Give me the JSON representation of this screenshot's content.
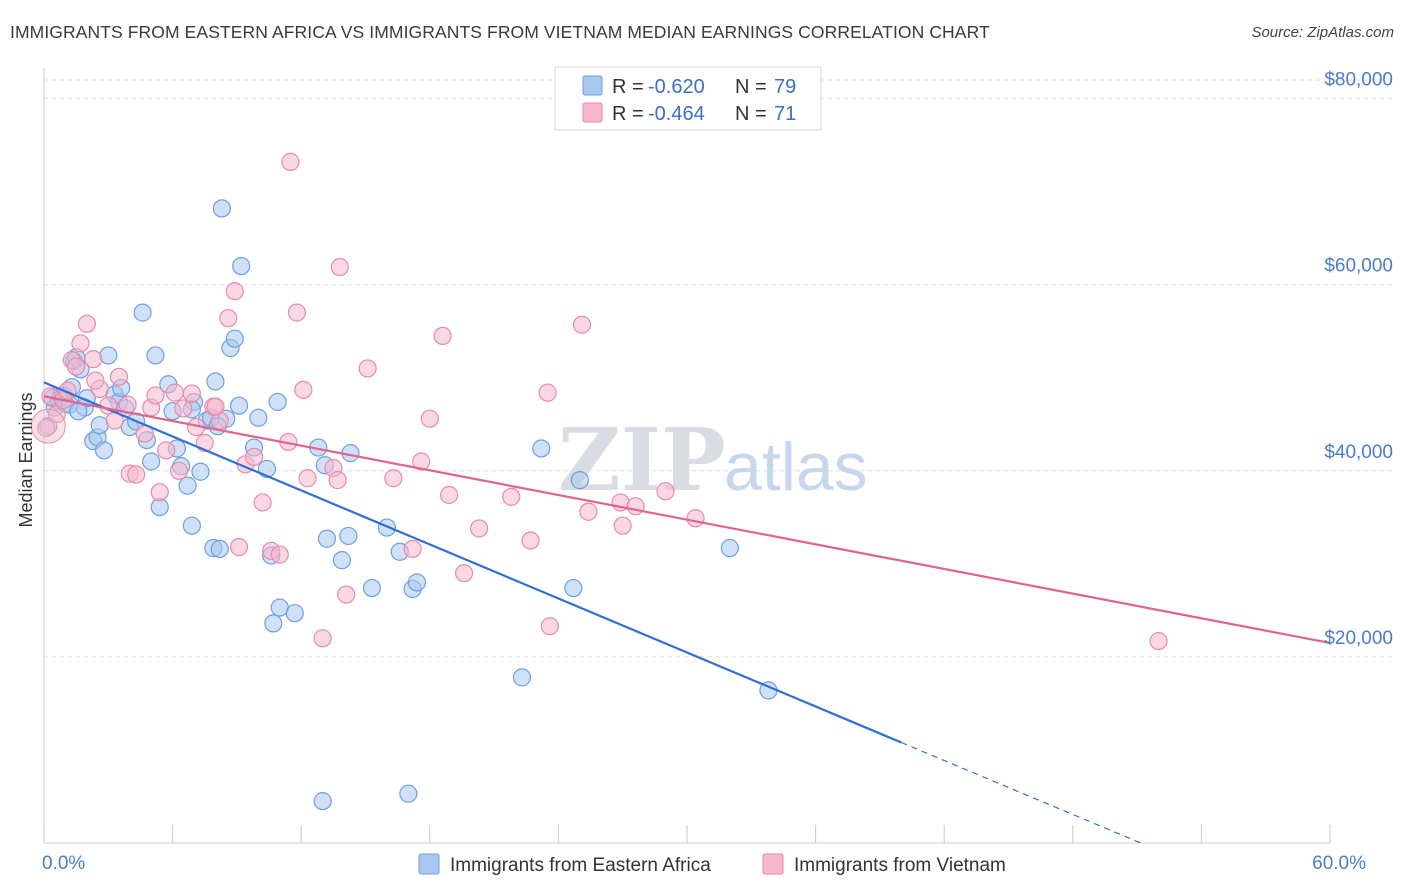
{
  "title": "IMMIGRANTS FROM EASTERN AFRICA VS IMMIGRANTS FROM VIETNAM MEDIAN EARNINGS CORRELATION CHART",
  "source": "Source: ZipAtlas.com",
  "watermark": {
    "zip": "ZIP",
    "atlas": "atlas"
  },
  "colors": {
    "blue_fill": "#a9c8f0",
    "blue_stroke": "#6e9fe0",
    "blue_line": "#2f6fd6",
    "pink_fill": "#f5b8cc",
    "pink_stroke": "#e88aa8",
    "pink_line": "#e0648d",
    "tick_text": "#4a7cc7",
    "grid": "#dddddd"
  },
  "legend": {
    "rows": [
      {
        "r_label": "R = ",
        "r_value": "-0.620",
        "n_label": "N = ",
        "n_value": "79"
      },
      {
        "r_label": "R = ",
        "r_value": "-0.464",
        "n_label": "N = ",
        "n_value": "71"
      }
    ]
  },
  "chart_data": {
    "type": "scatter",
    "ylabel": "Median Earnings",
    "xlim": [
      0,
      60
    ],
    "ylim": [
      0,
      82000
    ],
    "x_ticks_labeled": [
      {
        "value": 0,
        "label": "0.0%"
      },
      {
        "value": 60,
        "label": "60.0%"
      }
    ],
    "x_tick_marks": [
      0,
      6,
      12,
      18,
      24,
      30,
      36,
      42,
      48,
      54,
      60
    ],
    "y_ticks": [
      {
        "value": 20000,
        "label": "$20,000"
      },
      {
        "value": 40000,
        "label": "$40,000"
      },
      {
        "value": 60000,
        "label": "$60,000"
      },
      {
        "value": 80000,
        "label": "$80,000"
      }
    ],
    "grid": "horizontal-dashed",
    "legend_placement": "top-center",
    "series": [
      {
        "name": "Immigrants from Eastern Africa",
        "color": "blue",
        "points": [
          [
            0.2,
            44800
          ],
          [
            0.4,
            47800
          ],
          [
            0.5,
            46800
          ],
          [
            0.7,
            47500
          ],
          [
            0.8,
            48000
          ],
          [
            0.9,
            48100
          ],
          [
            1.0,
            47200
          ],
          [
            1.2,
            47100
          ],
          [
            1.3,
            49000
          ],
          [
            1.4,
            51800
          ],
          [
            1.5,
            52200
          ],
          [
            1.7,
            50900
          ],
          [
            1.9,
            46800
          ],
          [
            2.0,
            47800
          ],
          [
            2.3,
            43200
          ],
          [
            2.5,
            43600
          ],
          [
            2.8,
            42200
          ],
          [
            3.0,
            52400
          ],
          [
            3.3,
            48200
          ],
          [
            3.5,
            47400
          ],
          [
            3.8,
            46700
          ],
          [
            4.0,
            44700
          ],
          [
            4.3,
            45300
          ],
          [
            4.6,
            57000
          ],
          [
            4.8,
            43300
          ],
          [
            5.0,
            41000
          ],
          [
            5.2,
            52400
          ],
          [
            5.4,
            36100
          ],
          [
            5.8,
            49300
          ],
          [
            6.0,
            46400
          ],
          [
            6.2,
            42400
          ],
          [
            6.4,
            40500
          ],
          [
            6.7,
            38400
          ],
          [
            6.9,
            34100
          ],
          [
            7.0,
            47400
          ],
          [
            7.3,
            39900
          ],
          [
            7.6,
            45400
          ],
          [
            7.8,
            45700
          ],
          [
            7.9,
            31700
          ],
          [
            8.0,
            49600
          ],
          [
            8.2,
            31600
          ],
          [
            8.3,
            68200
          ],
          [
            8.5,
            45600
          ],
          [
            8.7,
            53200
          ],
          [
            8.9,
            54200
          ],
          [
            9.1,
            47000
          ],
          [
            9.2,
            62000
          ],
          [
            9.8,
            42500
          ],
          [
            10.0,
            45700
          ],
          [
            10.4,
            40200
          ],
          [
            10.6,
            30900
          ],
          [
            10.9,
            47400
          ],
          [
            10.7,
            23600
          ],
          [
            11.0,
            25300
          ],
          [
            11.7,
            24700
          ],
          [
            12.8,
            42500
          ],
          [
            13.1,
            40600
          ],
          [
            13.2,
            32700
          ],
          [
            13.9,
            30400
          ],
          [
            14.2,
            33000
          ],
          [
            14.3,
            41900
          ],
          [
            15.3,
            27400
          ],
          [
            16.0,
            33900
          ],
          [
            16.6,
            31300
          ],
          [
            17.2,
            27300
          ],
          [
            17.4,
            28000
          ],
          [
            13.0,
            4500
          ],
          [
            17.0,
            5300
          ],
          [
            22.3,
            17800
          ],
          [
            23.2,
            42400
          ],
          [
            24.7,
            27400
          ],
          [
            25.0,
            39000
          ],
          [
            32.0,
            31700
          ],
          [
            33.8,
            16400
          ],
          [
            2.6,
            44900
          ],
          [
            3.6,
            48900
          ],
          [
            6.9,
            46600
          ],
          [
            1.6,
            46400
          ],
          [
            8.1,
            44800
          ]
        ],
        "trend": {
          "x": [
            0,
            40,
            55
          ],
          "y": [
            49500,
            10800,
            -3700
          ],
          "solid_until": 40
        }
      },
      {
        "name": "Immigrants from Vietnam",
        "color": "pink",
        "points": [
          [
            0.1,
            44600
          ],
          [
            0.3,
            48000
          ],
          [
            0.6,
            46100
          ],
          [
            0.9,
            47600
          ],
          [
            1.1,
            48600
          ],
          [
            1.3,
            51900
          ],
          [
            1.5,
            51200
          ],
          [
            1.7,
            53700
          ],
          [
            2.0,
            55800
          ],
          [
            2.3,
            52000
          ],
          [
            2.6,
            48800
          ],
          [
            3.0,
            47000
          ],
          [
            3.3,
            45400
          ],
          [
            3.5,
            50100
          ],
          [
            3.9,
            47100
          ],
          [
            4.0,
            39700
          ],
          [
            4.3,
            39600
          ],
          [
            4.7,
            44000
          ],
          [
            5.0,
            46800
          ],
          [
            5.2,
            48100
          ],
          [
            5.4,
            37700
          ],
          [
            5.7,
            42200
          ],
          [
            6.1,
            48400
          ],
          [
            6.3,
            40000
          ],
          [
            6.5,
            46700
          ],
          [
            6.9,
            48300
          ],
          [
            7.1,
            44700
          ],
          [
            7.5,
            43000
          ],
          [
            7.9,
            46900
          ],
          [
            8.2,
            45400
          ],
          [
            8.6,
            56400
          ],
          [
            8.9,
            59300
          ],
          [
            9.1,
            31800
          ],
          [
            9.4,
            40700
          ],
          [
            9.8,
            41500
          ],
          [
            10.2,
            36600
          ],
          [
            10.6,
            31400
          ],
          [
            11.0,
            31000
          ],
          [
            11.4,
            43100
          ],
          [
            11.8,
            57000
          ],
          [
            12.1,
            48700
          ],
          [
            12.3,
            39200
          ],
          [
            11.5,
            73200
          ],
          [
            13.0,
            22000
          ],
          [
            13.5,
            40300
          ],
          [
            13.7,
            39000
          ],
          [
            13.8,
            61900
          ],
          [
            14.1,
            26700
          ],
          [
            15.1,
            51000
          ],
          [
            16.3,
            39200
          ],
          [
            17.2,
            31600
          ],
          [
            17.6,
            41000
          ],
          [
            18.0,
            45600
          ],
          [
            18.6,
            54500
          ],
          [
            18.9,
            37400
          ],
          [
            19.6,
            29000
          ],
          [
            20.3,
            33800
          ],
          [
            21.8,
            37200
          ],
          [
            22.7,
            32500
          ],
          [
            23.5,
            48400
          ],
          [
            23.6,
            23300
          ],
          [
            25.1,
            55700
          ],
          [
            25.4,
            35600
          ],
          [
            26.9,
            36600
          ],
          [
            27.0,
            34100
          ],
          [
            27.6,
            36200
          ],
          [
            29.0,
            37800
          ],
          [
            30.4,
            34900
          ],
          [
            52.0,
            21700
          ],
          [
            8.0,
            46900
          ],
          [
            2.4,
            49700
          ]
        ],
        "trend": {
          "x": [
            0,
            60
          ],
          "y": [
            48000,
            21500
          ],
          "solid_until": 60
        }
      }
    ]
  }
}
